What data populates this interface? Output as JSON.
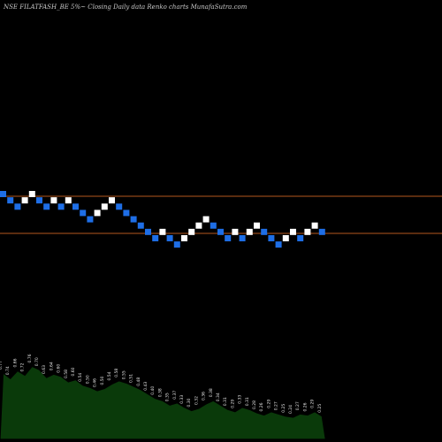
{
  "header": {
    "title": "NSE FILATFASH_BE 5%~  Closing Daily data  Renko  charts MunafaSutra.com"
  },
  "colors": {
    "background": "#000000",
    "up_brick": "#ffffff",
    "down_brick": "#1e6ee6",
    "reference_line": "#b4581e",
    "volume_area": "#0a3a0a"
  },
  "chart_data": {
    "type": "renko",
    "brick_size_percent": 5,
    "x_labels": [],
    "y_labels": [],
    "reference_lines": [
      1.0,
      0.45
    ],
    "bricks": [
      {
        "dir": "down",
        "level": 1.0
      },
      {
        "dir": "down",
        "level": 0.9
      },
      {
        "dir": "down",
        "level": 0.8
      },
      {
        "dir": "up",
        "level": 0.9
      },
      {
        "dir": "up",
        "level": 1.0
      },
      {
        "dir": "down",
        "level": 0.9
      },
      {
        "dir": "down",
        "level": 0.8
      },
      {
        "dir": "up",
        "level": 0.9
      },
      {
        "dir": "down",
        "level": 0.8
      },
      {
        "dir": "up",
        "level": 0.9
      },
      {
        "dir": "down",
        "level": 0.8
      },
      {
        "dir": "down",
        "level": 0.7
      },
      {
        "dir": "down",
        "level": 0.6
      },
      {
        "dir": "up",
        "level": 0.7
      },
      {
        "dir": "up",
        "level": 0.8
      },
      {
        "dir": "up",
        "level": 0.9
      },
      {
        "dir": "down",
        "level": 0.8
      },
      {
        "dir": "down",
        "level": 0.7
      },
      {
        "dir": "down",
        "level": 0.6
      },
      {
        "dir": "down",
        "level": 0.5
      },
      {
        "dir": "down",
        "level": 0.4
      },
      {
        "dir": "down",
        "level": 0.3
      },
      {
        "dir": "up",
        "level": 0.4
      },
      {
        "dir": "down",
        "level": 0.3
      },
      {
        "dir": "down",
        "level": 0.2
      },
      {
        "dir": "up",
        "level": 0.3
      },
      {
        "dir": "up",
        "level": 0.4
      },
      {
        "dir": "up",
        "level": 0.5
      },
      {
        "dir": "up",
        "level": 0.6
      },
      {
        "dir": "down",
        "level": 0.5
      },
      {
        "dir": "down",
        "level": 0.4
      },
      {
        "dir": "down",
        "level": 0.3
      },
      {
        "dir": "up",
        "level": 0.4
      },
      {
        "dir": "down",
        "level": 0.3
      },
      {
        "dir": "up",
        "level": 0.4
      },
      {
        "dir": "up",
        "level": 0.5
      },
      {
        "dir": "down",
        "level": 0.4
      },
      {
        "dir": "down",
        "level": 0.3
      },
      {
        "dir": "down",
        "level": 0.2
      },
      {
        "dir": "up",
        "level": 0.3
      },
      {
        "dir": "up",
        "level": 0.4
      },
      {
        "dir": "down",
        "level": 0.3
      },
      {
        "dir": "up",
        "level": 0.4
      },
      {
        "dir": "up",
        "level": 0.5
      },
      {
        "dir": "down",
        "level": 0.4
      }
    ],
    "volume": {
      "values": [
        60,
        55,
        62,
        58,
        66,
        63,
        56,
        59,
        57,
        52,
        54,
        49,
        47,
        44,
        46,
        50,
        53,
        51,
        48,
        45,
        41,
        37,
        35,
        31,
        33,
        29,
        26,
        28,
        32,
        35,
        31,
        27,
        25,
        29,
        27,
        24,
        22,
        25,
        23,
        21,
        20,
        23,
        22,
        25,
        21
      ],
      "labels": [
        "0.77",
        "0.74",
        "0.66",
        "0.72",
        "0.76",
        "0.70",
        "0.63",
        "0.64",
        "0.60",
        "0.58",
        "0.60",
        "0.54",
        "0.50",
        "0.46",
        "0.50",
        "0.54",
        "0.58",
        "0.55",
        "0.51",
        "0.48",
        "0.43",
        "0.40",
        "0.38",
        "0.35",
        "0.37",
        "0.33",
        "0.30",
        "0.32",
        "0.36",
        "0.38",
        "0.34",
        "0.31",
        "0.29",
        "0.33",
        "0.31",
        "0.28",
        "0.26",
        "0.29",
        "0.27",
        "0.25",
        "0.24",
        "0.27",
        "0.26",
        "0.29",
        "0.25"
      ]
    }
  }
}
